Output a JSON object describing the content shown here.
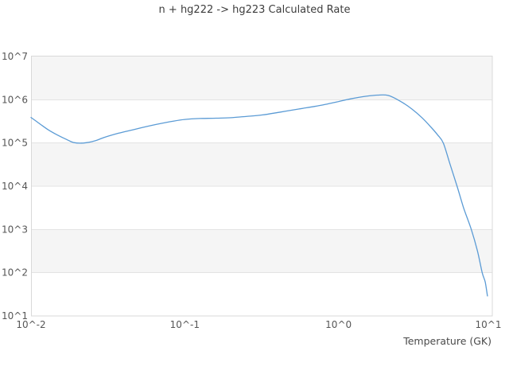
{
  "chart": {
    "title": "n + hg222 -> hg223 Calculated Rate",
    "xlabel": "Temperature (GK)"
  },
  "chart_data": {
    "type": "line",
    "title": "n + hg222 -> hg223 Calculated Rate",
    "xlabel": "Temperature (GK)",
    "ylabel": "",
    "x_scale": "log",
    "y_scale": "log",
    "xlim": [
      0.01,
      10
    ],
    "ylim": [
      10,
      10000000
    ],
    "xtick_labels": [
      "10^-2",
      "10^-1",
      "10^0",
      "10^1"
    ],
    "ytick_labels": [
      "10^1",
      "10^2",
      "10^3",
      "10^4",
      "10^5",
      "10^6",
      "10^7"
    ],
    "grid": "horizontal-decades",
    "background_bands": "alternating gray on odd decades (10^6-10^7, 10^4-10^5, 10^2-10^3)",
    "legend": "none",
    "line_color": "#5b9bd5",
    "band_color": "#f5f5f5",
    "series": [
      {
        "name": "calculated rate",
        "points": [
          [
            0.01,
            390000
          ],
          [
            0.0115,
            272000
          ],
          [
            0.013,
            200000
          ],
          [
            0.015,
            150000
          ],
          [
            0.017,
            121000
          ],
          [
            0.019,
            102000
          ],
          [
            0.022,
            100000
          ],
          [
            0.026,
            112000
          ],
          [
            0.03,
            135000
          ],
          [
            0.037,
            168000
          ],
          [
            0.048,
            210000
          ],
          [
            0.065,
            268000
          ],
          [
            0.085,
            322000
          ],
          [
            0.1,
            350000
          ],
          [
            0.125,
            368000
          ],
          [
            0.16,
            375000
          ],
          [
            0.2,
            385000
          ],
          [
            0.25,
            410000
          ],
          [
            0.32,
            445000
          ],
          [
            0.42,
            520000
          ],
          [
            0.55,
            610000
          ],
          [
            0.7,
            700000
          ],
          [
            0.85,
            800000
          ],
          [
            1.0,
            910000
          ],
          [
            1.2,
            1050000
          ],
          [
            1.5,
            1200000
          ],
          [
            1.8,
            1280000
          ],
          [
            2.1,
            1260000
          ],
          [
            2.5,
            940000
          ],
          [
            3.0,
            610000
          ],
          [
            3.5,
            380000
          ],
          [
            4.0,
            230000
          ],
          [
            4.4,
            155000
          ],
          [
            4.8,
            100000
          ],
          [
            5.3,
            33000
          ],
          [
            5.9,
            10000
          ],
          [
            6.5,
            3200
          ],
          [
            7.3,
            1000
          ],
          [
            8.0,
            320
          ],
          [
            8.6,
            100
          ],
          [
            9.0,
            60
          ],
          [
            9.3,
            29
          ]
        ]
      }
    ]
  }
}
